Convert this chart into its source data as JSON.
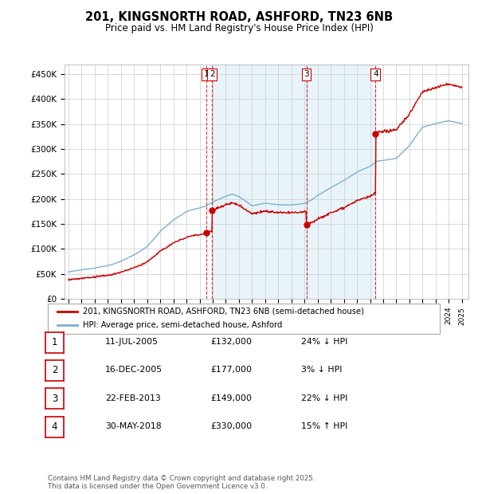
{
  "title": "201, KINGSNORTH ROAD, ASHFORD, TN23 6NB",
  "subtitle": "Price paid vs. HM Land Registry's House Price Index (HPI)",
  "ylabel_ticks": [
    "£0",
    "£50K",
    "£100K",
    "£150K",
    "£200K",
    "£250K",
    "£300K",
    "£350K",
    "£400K",
    "£450K"
  ],
  "ytick_values": [
    0,
    50000,
    100000,
    150000,
    200000,
    250000,
    300000,
    350000,
    400000,
    450000
  ],
  "ylim": [
    0,
    470000
  ],
  "xlim_start": 1994.7,
  "xlim_end": 2025.5,
  "hpi_color": "#7ab0d4",
  "price_color": "#cc0000",
  "transaction_color": "#cc0000",
  "legend_label_price": "201, KINGSNORTH ROAD, ASHFORD, TN23 6NB (semi-detached house)",
  "legend_label_hpi": "HPI: Average price, semi-detached house, Ashford",
  "transactions": [
    {
      "num": 1,
      "date_str": "11-JUL-2005",
      "date_x": 2005.53,
      "price": 132000,
      "pct": "24%",
      "dir": "↓"
    },
    {
      "num": 2,
      "date_str": "16-DEC-2005",
      "date_x": 2005.96,
      "price": 177000,
      "pct": "3%",
      "dir": "↓"
    },
    {
      "num": 3,
      "date_str": "22-FEB-2013",
      "date_x": 2013.14,
      "price": 149000,
      "pct": "22%",
      "dir": "↓"
    },
    {
      "num": 4,
      "date_str": "30-MAY-2018",
      "date_x": 2018.41,
      "price": 330000,
      "pct": "15%",
      "dir": "↑"
    }
  ],
  "footnote": "Contains HM Land Registry data © Crown copyright and database right 2025.\nThis data is licensed under the Open Government Licence v3.0.",
  "background_color": "#ffffff",
  "plot_bg_color": "#ffffff",
  "grid_color": "#cccccc",
  "hpi_base_points": [
    [
      1995.0,
      54000
    ],
    [
      1996.0,
      57000
    ],
    [
      1997.0,
      62000
    ],
    [
      1998.0,
      67000
    ],
    [
      1999.0,
      75000
    ],
    [
      2000.0,
      88000
    ],
    [
      2001.0,
      105000
    ],
    [
      2002.0,
      135000
    ],
    [
      2003.0,
      158000
    ],
    [
      2004.0,
      175000
    ],
    [
      2005.0,
      183000
    ],
    [
      2005.5,
      187000
    ],
    [
      2006.0,
      195000
    ],
    [
      2007.0,
      208000
    ],
    [
      2007.5,
      212000
    ],
    [
      2008.0,
      207000
    ],
    [
      2009.0,
      188000
    ],
    [
      2010.0,
      193000
    ],
    [
      2011.0,
      190000
    ],
    [
      2012.0,
      188000
    ],
    [
      2013.0,
      192000
    ],
    [
      2013.5,
      198000
    ],
    [
      2014.0,
      208000
    ],
    [
      2015.0,
      224000
    ],
    [
      2016.0,
      238000
    ],
    [
      2017.0,
      255000
    ],
    [
      2018.0,
      267000
    ],
    [
      2018.5,
      276000
    ],
    [
      2019.0,
      278000
    ],
    [
      2020.0,
      282000
    ],
    [
      2021.0,
      308000
    ],
    [
      2022.0,
      345000
    ],
    [
      2023.0,
      352000
    ],
    [
      2024.0,
      358000
    ],
    [
      2025.0,
      352000
    ]
  ],
  "table_rows": [
    {
      "num": "1",
      "date": "11-JUL-2005",
      "price": "£132,000",
      "pct": "24% ↓ HPI"
    },
    {
      "num": "2",
      "date": "16-DEC-2005",
      "price": "£177,000",
      "pct": "3% ↓ HPI"
    },
    {
      "num": "3",
      "date": "22-FEB-2013",
      "price": "£149,000",
      "pct": "22% ↓ HPI"
    },
    {
      "num": "4",
      "date": "30-MAY-2018",
      "price": "£330,000",
      "pct": "15% ↑ HPI"
    }
  ]
}
